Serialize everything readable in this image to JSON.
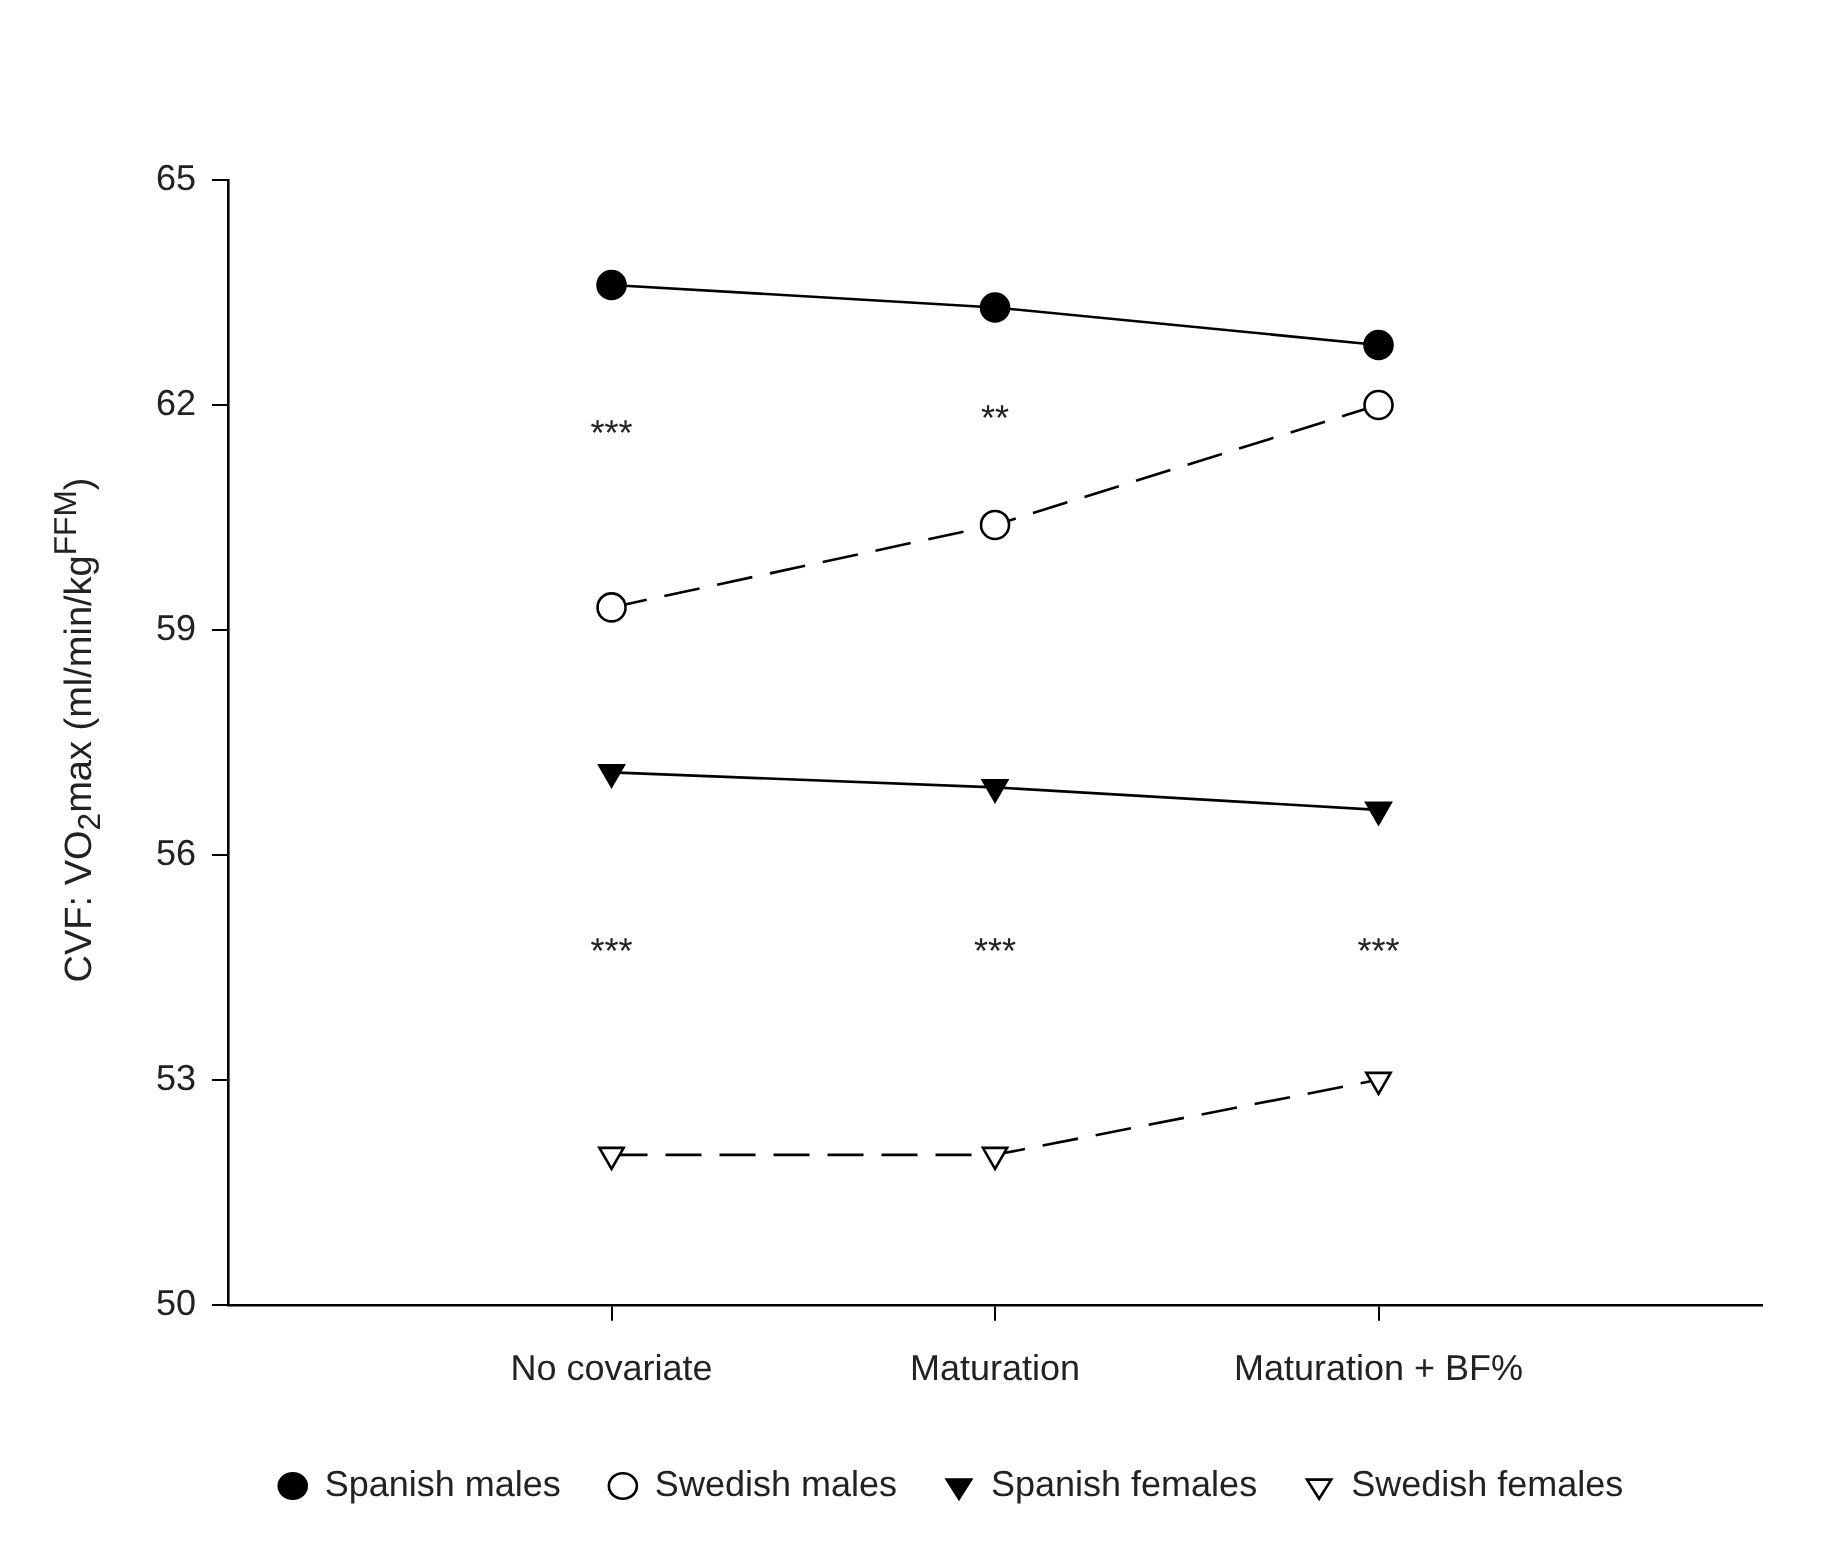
{
  "chart_data": {
    "type": "line",
    "ylabel": "CVF: VO$_{2}$max (ml/min/kg$^{FFM}$)",
    "categories": [
      "No covariate",
      "Maturation",
      "Maturation + BF%"
    ],
    "series": [
      {
        "name": "Spanish males",
        "color": "#000000",
        "values": [
          63.6,
          63.3,
          62.8
        ],
        "marker": "circle",
        "line_style": "solid"
      },
      {
        "name": "Swedish males",
        "color": "#000000",
        "values": [
          59.3,
          60.4,
          62.0
        ],
        "marker": "circle",
        "line_style": "dashed"
      },
      {
        "name": "Spanish females",
        "color": "#000000",
        "values": [
          57.1,
          56.9,
          56.6
        ],
        "marker": "triangle",
        "line_style": "solid"
      },
      {
        "name": "Swedish females",
        "color": "#000000",
        "values": [
          52.0,
          52.0,
          53.0
        ],
        "marker": "triangle",
        "line_style": "dashed"
      }
    ],
    "ylim": [
      50,
      65
    ],
    "yticks": [
      50,
      53,
      56,
      59,
      62,
      65
    ],
    "grid": false,
    "legend": "bottom",
    "annotations": [
      "***",
      "**",
      "***",
      "***",
      "***"
    ]
  }
}
